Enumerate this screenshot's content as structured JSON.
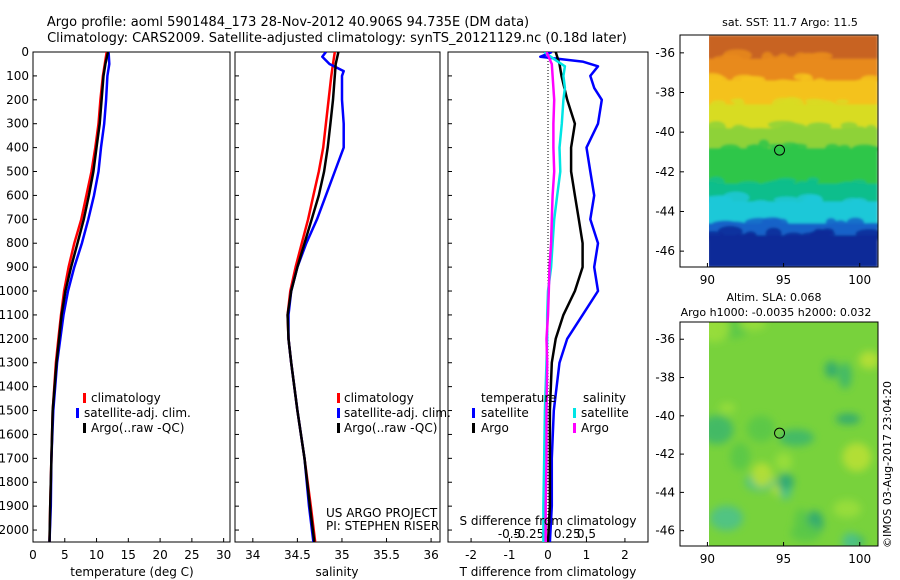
{
  "header": {
    "title_line1": "Argo profile: aoml 5901484_173 28-Nov-2012 40.906S 94.735E (DM data)",
    "title_line2": "Climatology: CARS2009. Satellite-adjusted climatology: synTS_20121129.nc (0.18d later)"
  },
  "credit": {
    "project": "US ARGO PROJECT",
    "pi": "PI: STEPHEN RISER",
    "stamp": "©IMOS 03-Aug-2017 23:04:20"
  },
  "colors": {
    "climatology": "#ff0000",
    "satellite": "#0000ff",
    "argo": "#000000",
    "sal_satellite": "#00e5e5",
    "sal_argo": "#ff00ff"
  },
  "chart_data": [
    {
      "type": "line",
      "id": "temperature",
      "xlabel": "temperature (deg C)",
      "xlim": [
        0,
        31
      ],
      "ylim": [
        2050,
        0
      ],
      "xticks": [
        "0",
        "5",
        "10",
        "15",
        "20",
        "25",
        "30"
      ],
      "xtick_values": [
        0,
        5,
        10,
        15,
        20,
        25,
        30
      ],
      "yticks": [
        "0",
        "100",
        "200",
        "300",
        "400",
        "500",
        "600",
        "700",
        "800",
        "900",
        "1000",
        "1100",
        "1200",
        "1300",
        "1400",
        "1500",
        "1600",
        "1700",
        "1800",
        "1900",
        "2000"
      ],
      "ytick_values": [
        0,
        100,
        200,
        300,
        400,
        500,
        600,
        700,
        800,
        900,
        1000,
        1100,
        1200,
        1300,
        1400,
        1500,
        1600,
        1700,
        1800,
        1900,
        2000
      ],
      "legend": [
        "climatology",
        "satellite-adj. clim.",
        "Argo(..raw -QC)"
      ],
      "series": [
        {
          "name": "climatology",
          "color": "#ff0000",
          "depth": [
            0,
            50,
            100,
            200,
            300,
            400,
            500,
            600,
            700,
            800,
            900,
            1000,
            1100,
            1200,
            1300,
            1500,
            1700,
            1900,
            2050
          ],
          "values": [
            11.6,
            11.3,
            11.0,
            10.6,
            10.3,
            9.8,
            9.2,
            8.4,
            7.6,
            6.5,
            5.6,
            4.9,
            4.4,
            4.0,
            3.6,
            3.1,
            2.9,
            2.7,
            2.6
          ]
        },
        {
          "name": "satellite-adj. clim.",
          "color": "#0000ff",
          "depth": [
            0,
            50,
            100,
            200,
            300,
            400,
            500,
            600,
            700,
            800,
            900,
            1000,
            1100,
            1200,
            1300,
            1500,
            1700,
            1900,
            2050
          ],
          "values": [
            11.9,
            12.0,
            11.7,
            11.5,
            11.2,
            10.7,
            10.3,
            9.6,
            8.7,
            7.7,
            6.5,
            5.5,
            4.8,
            4.3,
            3.8,
            3.2,
            2.9,
            2.8,
            2.6
          ]
        },
        {
          "name": "Argo(..raw -QC)",
          "color": "#000000",
          "depth": [
            0,
            50,
            100,
            200,
            300,
            400,
            500,
            600,
            700,
            800,
            900,
            1000,
            1100,
            1200,
            1300,
            1500,
            1700,
            1900,
            2050
          ],
          "values": [
            11.8,
            11.4,
            11.1,
            10.8,
            10.5,
            10.0,
            9.5,
            8.8,
            8.0,
            7.0,
            6.0,
            5.1,
            4.5,
            4.1,
            3.7,
            3.1,
            2.9,
            2.7,
            2.6
          ]
        }
      ]
    },
    {
      "type": "line",
      "id": "salinity",
      "xlabel": "salinity",
      "xlim": [
        33.8,
        36.1
      ],
      "ylim": [
        2050,
        0
      ],
      "xticks": [
        "34",
        "34.5",
        "35",
        "35.5",
        "36"
      ],
      "xtick_values": [
        34,
        34.5,
        35,
        35.5,
        36
      ],
      "legend": [
        "climatology",
        "satellite-adj. clim.",
        "Argo(..raw -QC)"
      ],
      "series": [
        {
          "name": "climatology",
          "color": "#ff0000",
          "depth": [
            0,
            50,
            100,
            200,
            300,
            400,
            500,
            600,
            700,
            800,
            900,
            1000,
            1100,
            1200,
            1300,
            1500,
            1700,
            1900,
            2050
          ],
          "values": [
            34.92,
            34.9,
            34.88,
            34.85,
            34.82,
            34.79,
            34.74,
            34.68,
            34.62,
            34.55,
            34.48,
            34.42,
            34.39,
            34.4,
            34.43,
            34.5,
            34.58,
            34.65,
            34.7
          ]
        },
        {
          "name": "satellite-adj. clim.",
          "color": "#0000ff",
          "depth": [
            0,
            20,
            50,
            80,
            100,
            200,
            300,
            400,
            500,
            600,
            700,
            800,
            900,
            1000,
            1100,
            1200,
            1300,
            1500,
            1700,
            1900,
            2050
          ],
          "values": [
            34.82,
            34.78,
            34.86,
            35.02,
            35.0,
            35.0,
            35.02,
            35.02,
            34.92,
            34.82,
            34.72,
            34.6,
            34.5,
            34.43,
            34.4,
            34.4,
            34.43,
            34.5,
            34.58,
            34.63,
            34.68
          ]
        },
        {
          "name": "Argo(..raw -QC)",
          "color": "#000000",
          "depth": [
            0,
            50,
            100,
            200,
            300,
            400,
            500,
            600,
            700,
            800,
            900,
            1000,
            1100,
            1200,
            1300,
            1500,
            1700,
            1900,
            2050
          ],
          "values": [
            34.96,
            34.93,
            34.92,
            34.9,
            34.87,
            34.84,
            34.8,
            34.74,
            34.66,
            34.58,
            34.5,
            34.43,
            34.39,
            34.4,
            34.43,
            34.5,
            34.58,
            34.64,
            34.69
          ]
        }
      ]
    },
    {
      "type": "line",
      "id": "difference",
      "xlabel": "T difference from climatology",
      "xlabel2": "S difference from climatology",
      "xlim": [
        -2.6,
        2.6
      ],
      "ylim": [
        2050,
        0
      ],
      "xticks": [
        "-2",
        "-1",
        "0",
        "1",
        "2"
      ],
      "xtick_values": [
        -2,
        -1,
        0,
        1,
        2
      ],
      "sticks": [
        "-0.5",
        "-0.25",
        "0",
        "0.25",
        "0.5"
      ],
      "stick_values": [
        -0.5,
        -0.25,
        0,
        0.25,
        0.5
      ],
      "legend_temperature": "temperature",
      "legend_salinity": "salinity",
      "legend_satellite": "satellite",
      "legend_argo": "Argo",
      "series": [
        {
          "name": "temperature satellite",
          "color": "#0000ff",
          "scale": "T",
          "depth": [
            0,
            20,
            40,
            60,
            100,
            150,
            200,
            300,
            400,
            500,
            600,
            700,
            800,
            900,
            1000,
            1100,
            1200,
            1300,
            1500,
            1700,
            1900,
            2050
          ],
          "values": [
            0.1,
            -0.2,
            0.9,
            1.3,
            1.1,
            1.2,
            1.4,
            1.3,
            1.0,
            1.1,
            1.2,
            1.1,
            1.3,
            1.2,
            1.3,
            0.9,
            0.5,
            0.3,
            0.15,
            0.1,
            0.1,
            0.05
          ]
        },
        {
          "name": "temperature Argo",
          "color": "#000000",
          "scale": "T",
          "depth": [
            0,
            50,
            100,
            200,
            300,
            400,
            500,
            600,
            700,
            800,
            900,
            1000,
            1100,
            1200,
            1300,
            1500,
            1700,
            1900,
            2050
          ],
          "values": [
            0.2,
            0.3,
            0.35,
            0.5,
            0.7,
            0.6,
            0.6,
            0.7,
            0.8,
            0.9,
            0.9,
            0.7,
            0.4,
            0.2,
            0.1,
            0.05,
            0.05,
            0.05,
            0.0
          ]
        },
        {
          "name": "salinity satellite",
          "color": "#00e5e5",
          "scale": "S",
          "depth": [
            0,
            30,
            60,
            100,
            150,
            200,
            300,
            400,
            500,
            600,
            700,
            800,
            900,
            1000,
            1100,
            1200,
            1300,
            1500,
            1700,
            1900,
            2050
          ],
          "values": [
            -0.05,
            0.08,
            0.22,
            0.2,
            0.22,
            0.2,
            0.18,
            0.15,
            0.16,
            0.12,
            0.08,
            0.06,
            0.04,
            0.0,
            -0.01,
            -0.01,
            -0.02,
            -0.04,
            -0.05,
            -0.06,
            -0.06
          ]
        },
        {
          "name": "salinity Argo",
          "color": "#ff00ff",
          "scale": "S",
          "depth": [
            0,
            50,
            100,
            200,
            300,
            400,
            500,
            600,
            700,
            800,
            900,
            1000,
            1100,
            1200,
            1300,
            1500,
            1700,
            1900,
            2050
          ],
          "values": [
            -0.02,
            0.05,
            0.06,
            0.08,
            0.07,
            0.07,
            0.08,
            0.06,
            0.05,
            0.04,
            0.02,
            0.01,
            0.0,
            -0.02,
            -0.01,
            -0.02,
            -0.02,
            -0.03,
            -0.03
          ]
        }
      ]
    },
    {
      "type": "heatmap",
      "id": "sst_map",
      "title": "sat. SST: 11.7  Argo: 11.5",
      "xlim": [
        88.2,
        101.2
      ],
      "ylim": [
        -46.8,
        -35.1
      ],
      "xticks": [
        "90",
        "95",
        "100"
      ],
      "xtick_values": [
        90,
        95,
        100
      ],
      "yticks": [
        "-36",
        "-38",
        "-40",
        "-42",
        "-44",
        "-46"
      ],
      "ytick_values": [
        -36,
        -38,
        -40,
        -42,
        -44,
        -46
      ],
      "data_extent_x": [
        90,
        101.2
      ],
      "marker": {
        "lon": 94.735,
        "lat": -40.906
      },
      "colormap_bands": [
        {
          "lat_from": -35.1,
          "lat_to": -36.3,
          "color": "#c86424"
        },
        {
          "lat_from": -36.3,
          "lat_to": -37.4,
          "color": "#e88a1e"
        },
        {
          "lat_from": -37.4,
          "lat_to": -38.6,
          "color": "#f4c21c"
        },
        {
          "lat_from": -38.6,
          "lat_to": -39.8,
          "color": "#d8dc24"
        },
        {
          "lat_from": -39.8,
          "lat_to": -40.8,
          "color": "#8ed238"
        },
        {
          "lat_from": -40.8,
          "lat_to": -42.6,
          "color": "#2ec64a"
        },
        {
          "lat_from": -42.6,
          "lat_to": -43.5,
          "color": "#10be8c"
        },
        {
          "lat_from": -43.5,
          "lat_to": -44.6,
          "color": "#1ec8d8"
        },
        {
          "lat_from": -44.6,
          "lat_to": -45.2,
          "color": "#1862c8"
        },
        {
          "lat_from": -45.2,
          "lat_to": -46.8,
          "color": "#0a2c98"
        }
      ]
    },
    {
      "type": "heatmap",
      "id": "sla_map",
      "title": "Altim. SLA: 0.068",
      "subtitle": "Argo h1000: -0.0035 h2000: 0.032",
      "xlim": [
        88.2,
        101.2
      ],
      "ylim": [
        -46.8,
        -35.1
      ],
      "xticks": [
        "90",
        "95",
        "100"
      ],
      "xtick_values": [
        90,
        95,
        100
      ],
      "yticks": [
        "-36",
        "-38",
        "-40",
        "-42",
        "-44",
        "-46"
      ],
      "ytick_values": [
        -36,
        -38,
        -40,
        -42,
        -44,
        -46
      ],
      "data_extent_x": [
        90,
        101.2
      ],
      "marker": {
        "lon": 94.735,
        "lat": -40.906
      },
      "base_color": "#78d23c"
    }
  ]
}
